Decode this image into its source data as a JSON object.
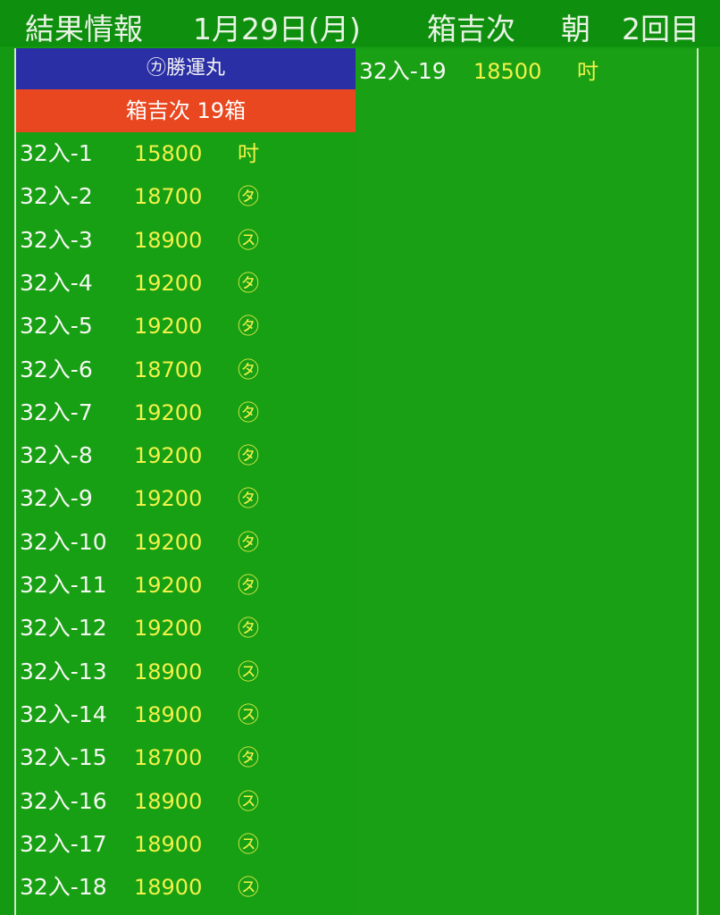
{
  "header": {
    "title_parts": [
      "結果情報",
      "1月29日(月)",
      "箱吉次",
      "朝",
      "2回目"
    ]
  },
  "columns": [
    {
      "buyer": "㋕勝運丸",
      "lot_summary": "箱吉次 19箱",
      "rows": [
        [
          "32入-1",
          15800,
          "吋"
        ],
        [
          "32入-2",
          18700,
          "㋟"
        ],
        [
          "32入-3",
          18900,
          "㋜"
        ],
        [
          "32入-4",
          19200,
          "㋟"
        ],
        [
          "32入-5",
          19200,
          "㋟"
        ],
        [
          "32入-6",
          18700,
          "㋟"
        ],
        [
          "32入-7",
          19200,
          "㋟"
        ],
        [
          "32入-8",
          19200,
          "㋟"
        ],
        [
          "32入-9",
          19200,
          "㋟"
        ],
        [
          "32入-10",
          19200,
          "㋟"
        ],
        [
          "32入-11",
          19200,
          "㋟"
        ],
        [
          "32入-12",
          19200,
          "㋟"
        ],
        [
          "32入-13",
          18900,
          "㋜"
        ],
        [
          "32入-14",
          18900,
          "㋜"
        ],
        [
          "32入-15",
          18700,
          "㋟"
        ],
        [
          "32入-16",
          18900,
          "㋜"
        ],
        [
          "32入-17",
          18900,
          "㋜"
        ],
        [
          "32入-18",
          18900,
          "㋜"
        ]
      ]
    },
    {
      "rows": [
        [
          "32入-19",
          18500,
          "吋"
        ]
      ]
    }
  ]
}
